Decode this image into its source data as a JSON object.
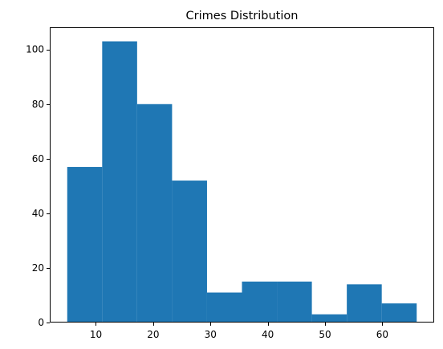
{
  "chart_data": {
    "type": "bar",
    "title": "Crimes Distribution",
    "xlabel": "",
    "ylabel": "",
    "bin_edges": [
      5,
      11.1,
      17.2,
      23.3,
      29.4,
      35.5,
      41.6,
      47.7,
      53.8,
      59.9,
      66
    ],
    "values": [
      57,
      103,
      80,
      52,
      11,
      15,
      15,
      3,
      14,
      7
    ],
    "xlim": [
      1.95,
      69.05
    ],
    "ylim": [
      0,
      108.15
    ],
    "xticks": [
      10,
      20,
      30,
      40,
      50,
      60
    ],
    "yticks": [
      0,
      20,
      40,
      60,
      80,
      100
    ],
    "grid": false,
    "bar_color": "#1f77b4"
  }
}
